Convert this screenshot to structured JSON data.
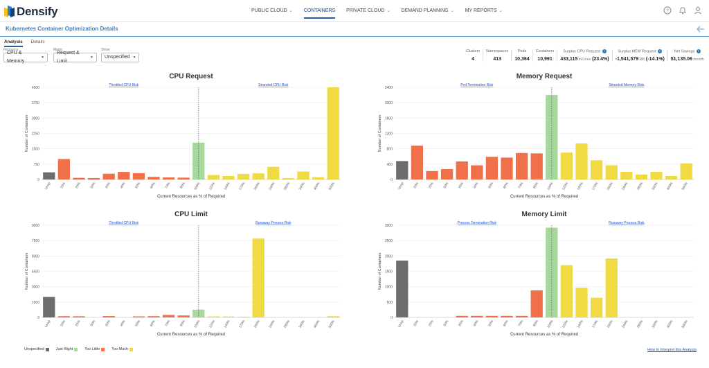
{
  "app": {
    "name": "Densify"
  },
  "nav": {
    "items": [
      {
        "label": "PUBLIC CLOUD",
        "chevron": true
      },
      {
        "label": "CONTAINERS",
        "chevron": false,
        "active": true
      },
      {
        "label": "PRIVATE CLOUD",
        "chevron": true
      },
      {
        "label": "DEMAND PLANNING",
        "chevron": true
      },
      {
        "label": "MY REPORTS",
        "chevron": true
      }
    ]
  },
  "page": {
    "title": "Kubernetes Container Optimization Details"
  },
  "tabs": [
    {
      "label": "Analysis",
      "active": true
    },
    {
      "label": "Details",
      "active": false
    }
  ],
  "filters": [
    {
      "label": "Resource",
      "value": "CPU & Memory"
    },
    {
      "label": "Metric",
      "value": "Request & Limit"
    },
    {
      "label": "Show",
      "value": "Unspecified"
    }
  ],
  "stats": [
    {
      "label": "Clusters",
      "value": "4"
    },
    {
      "label": "Namespaces",
      "value": "413"
    },
    {
      "label": "Pods",
      "value": "10,364"
    },
    {
      "label": "Containers",
      "value": "10,991"
    },
    {
      "label": "Surplus CPU Request",
      "value": "433,115",
      "unit": "mCores",
      "extra": "(23.4%)",
      "info": true
    },
    {
      "label": "Surplus MEM Request",
      "value": "-1,541,579",
      "unit": "MB",
      "extra": "(-14.1%)",
      "info": true
    },
    {
      "label": "Net Savings",
      "value": "$1,135.06",
      "unit": "/month",
      "info": true
    }
  ],
  "colors": {
    "unspecified": "#6d6d6d",
    "just_right": "#a6d89b",
    "too_little": "#f0704a",
    "too_much": "#f0db44",
    "accent": "#3f7cbf",
    "link": "#1a4fcf"
  },
  "legend": [
    {
      "label": "Unspecified",
      "color": "#6d6d6d"
    },
    {
      "label": "Just Right",
      "color": "#a6d89b"
    },
    {
      "label": "Too Little",
      "color": "#f0704a"
    },
    {
      "label": "Too Much",
      "color": "#f0db44"
    }
  ],
  "footer": {
    "interpret_link": "How to Interpret this Analysis"
  },
  "chart_data": [
    {
      "type": "bar",
      "title": "CPU Request",
      "xlabel": "Current Resources as % of Required",
      "ylabel": "Number of Containers",
      "ylim": [
        0,
        4500
      ],
      "yticks": [
        0,
        750,
        1500,
        2250,
        3000,
        3750,
        4500
      ],
      "categories": [
        "Unsp",
        "20%",
        "25%",
        "30%",
        "35%",
        "40%",
        "50%",
        "60%",
        "70%",
        "85%",
        "100%",
        "120%",
        "140%",
        "170%",
        "200%",
        "240%",
        "280%",
        "340%",
        "400%",
        "500%"
      ],
      "values": [
        350,
        1000,
        80,
        70,
        280,
        370,
        310,
        130,
        100,
        90,
        1800,
        220,
        170,
        270,
        300,
        620,
        70,
        390,
        110,
        4500
      ],
      "colors": [
        "unspecified",
        "too_little",
        "too_little",
        "too_little",
        "too_little",
        "too_little",
        "too_little",
        "too_little",
        "too_little",
        "too_little",
        "just_right",
        "too_much",
        "too_much",
        "too_much",
        "too_much",
        "too_much",
        "too_much",
        "too_much",
        "too_much",
        "too_much"
      ],
      "annotations": {
        "left": "Throttled CPU Risk",
        "right": "Stranded CPU Risk"
      }
    },
    {
      "type": "bar",
      "title": "Memory Request",
      "xlabel": "Current Resources as % of Required",
      "ylabel": "Number of Containers",
      "ylim": [
        0,
        2400
      ],
      "yticks": [
        0,
        400,
        800,
        1200,
        1600,
        2000,
        2400
      ],
      "categories": [
        "Unsp",
        "20%",
        "25%",
        "30%",
        "35%",
        "40%",
        "50%",
        "60%",
        "70%",
        "85%",
        "100%",
        "120%",
        "140%",
        "170%",
        "200%",
        "240%",
        "280%",
        "340%",
        "400%",
        "500%"
      ],
      "values": [
        480,
        880,
        220,
        270,
        470,
        370,
        590,
        570,
        690,
        680,
        2200,
        700,
        940,
        500,
        370,
        200,
        130,
        200,
        90,
        420
      ],
      "colors": [
        "unspecified",
        "too_little",
        "too_little",
        "too_little",
        "too_little",
        "too_little",
        "too_little",
        "too_little",
        "too_little",
        "too_little",
        "just_right",
        "too_much",
        "too_much",
        "too_much",
        "too_much",
        "too_much",
        "too_much",
        "too_much",
        "too_much",
        "too_much"
      ],
      "annotations": {
        "left": "Pod Termination Risk",
        "right": "Stranded Memory Risk"
      }
    },
    {
      "type": "bar",
      "title": "CPU Limit",
      "xlabel": "Current Resources as % of Required",
      "ylabel": "Number of Containers",
      "ylim": [
        0,
        9000
      ],
      "yticks": [
        0,
        1500,
        3000,
        4500,
        6000,
        7500,
        9000
      ],
      "categories": [
        "Unsp",
        "20%",
        "25%",
        "30%",
        "35%",
        "40%",
        "50%",
        "60%",
        "70%",
        "85%",
        "100%",
        "120%",
        "140%",
        "170%",
        "200%",
        "240%",
        "280%",
        "340%",
        "400%",
        "500%"
      ],
      "values": [
        2000,
        120,
        110,
        0,
        130,
        0,
        100,
        120,
        240,
        190,
        760,
        100,
        90,
        70,
        7700,
        0,
        0,
        0,
        0,
        120
      ],
      "colors": [
        "unspecified",
        "too_little",
        "too_little",
        "too_little",
        "too_little",
        "too_little",
        "too_little",
        "too_little",
        "too_little",
        "too_little",
        "just_right",
        "too_much",
        "too_much",
        "too_much",
        "too_much",
        "too_much",
        "too_much",
        "too_much",
        "too_much",
        "too_much"
      ],
      "annotations": {
        "left": "Throttled CPU Risk",
        "right": "Runaway Process Risk"
      }
    },
    {
      "type": "bar",
      "title": "Memory Limit",
      "xlabel": "Current Resources as % of Required",
      "ylabel": "Number of Containers",
      "ylim": [
        0,
        3000
      ],
      "yticks": [
        0,
        500,
        1000,
        1500,
        2000,
        2500,
        3000
      ],
      "categories": [
        "Unsp",
        "20%",
        "25%",
        "30%",
        "35%",
        "40%",
        "50%",
        "60%",
        "70%",
        "85%",
        "100%",
        "120%",
        "140%",
        "170%",
        "200%",
        "240%",
        "280%",
        "340%",
        "400%",
        "500%"
      ],
      "values": [
        1850,
        0,
        0,
        0,
        50,
        50,
        50,
        50,
        50,
        880,
        2920,
        1700,
        970,
        640,
        1920,
        0,
        0,
        0,
        0,
        0
      ],
      "colors": [
        "unspecified",
        "too_little",
        "too_little",
        "too_little",
        "too_little",
        "too_little",
        "too_little",
        "too_little",
        "too_little",
        "too_little",
        "just_right",
        "too_much",
        "too_much",
        "too_much",
        "too_much",
        "too_much",
        "too_much",
        "too_much",
        "too_much",
        "too_much"
      ],
      "annotations": {
        "left": "Process Termination Risk",
        "right": "Runaway Process Risk"
      }
    }
  ]
}
